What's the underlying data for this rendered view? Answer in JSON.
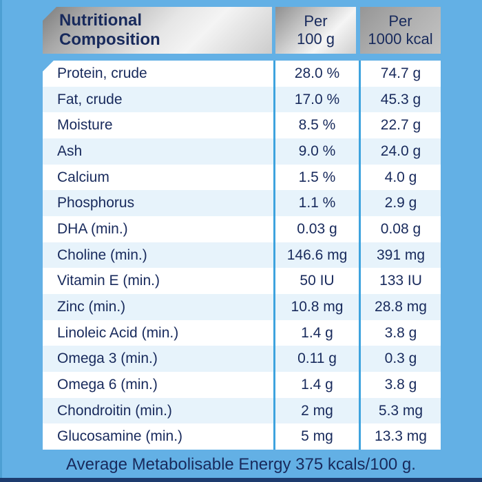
{
  "colors": {
    "background": "#63b0e5",
    "background_edge": "#4d9fd3",
    "bottom_bar": "#1d3b6e",
    "text_navy": "#182a5c",
    "row_alt": "#e7f3fb",
    "separator_blue": "#3ea3de"
  },
  "table": {
    "header": {
      "title": "Nutritional\nComposition",
      "col_per_100g": "Per\n100 g",
      "col_per_1000kcal": "Per\n1000 kcal"
    },
    "rows": [
      {
        "label": "Protein, crude",
        "per_100g": "28.0 %",
        "per_1000kcal": "74.7 g"
      },
      {
        "label": "Fat, crude",
        "per_100g": "17.0 %",
        "per_1000kcal": "45.3 g"
      },
      {
        "label": "Moisture",
        "per_100g": "8.5 %",
        "per_1000kcal": "22.7 g"
      },
      {
        "label": "Ash",
        "per_100g": "9.0 %",
        "per_1000kcal": "24.0 g"
      },
      {
        "label": "Calcium",
        "per_100g": "1.5 %",
        "per_1000kcal": "4.0 g"
      },
      {
        "label": "Phosphorus",
        "per_100g": "1.1 %",
        "per_1000kcal": "2.9 g"
      },
      {
        "label": "DHA (min.)",
        "per_100g": "0.03 g",
        "per_1000kcal": "0.08 g"
      },
      {
        "label": "Choline (min.)",
        "per_100g": "146.6 mg",
        "per_1000kcal": "391 mg"
      },
      {
        "label": "Vitamin E (min.)",
        "per_100g": "50 IU",
        "per_1000kcal": "133 IU"
      },
      {
        "label": "Zinc (min.)",
        "per_100g": "10.8 mg",
        "per_1000kcal": "28.8 mg"
      },
      {
        "label": "Linoleic Acid (min.)",
        "per_100g": "1.4 g",
        "per_1000kcal": "3.8 g"
      },
      {
        "label": "Omega 3 (min.)",
        "per_100g": "0.11 g",
        "per_1000kcal": "0.3 g"
      },
      {
        "label": "Omega 6 (min.)",
        "per_100g": "1.4 g",
        "per_1000kcal": "3.8 g"
      },
      {
        "label": "Chondroitin (min.)",
        "per_100g": "2 mg",
        "per_1000kcal": "5.3 mg"
      },
      {
        "label": "Glucosamine (min.)",
        "per_100g": "5 mg",
        "per_1000kcal": "13.3 mg"
      }
    ],
    "footnote": "Average Metabolisable Energy 375 kcals/100 g."
  }
}
